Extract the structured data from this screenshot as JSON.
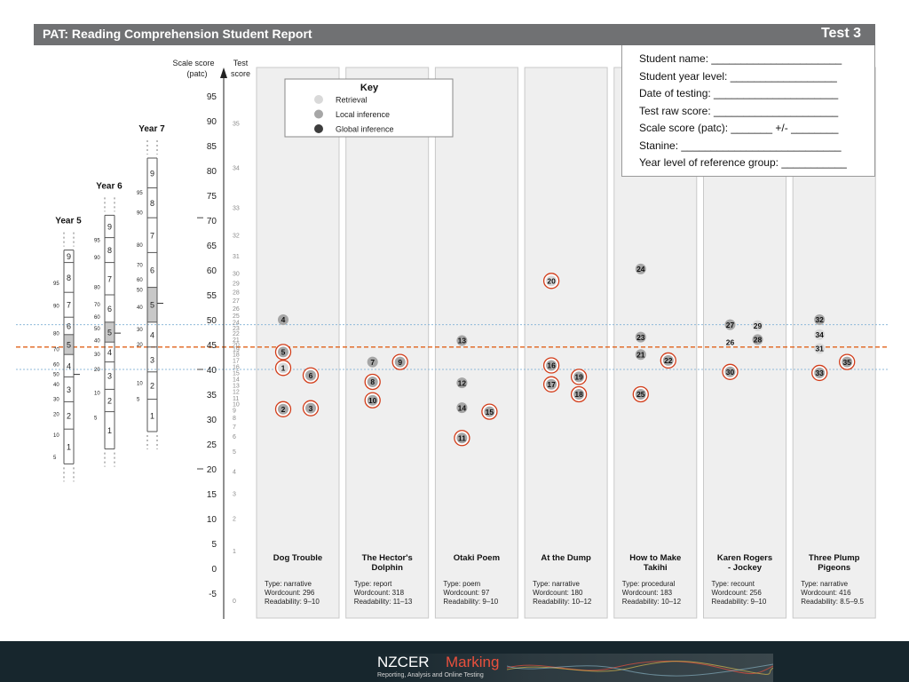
{
  "header": {
    "title": "PAT: Reading Comprehension Student Report",
    "test_label": "Test  3"
  },
  "student_info": [
    "Student name: ______________________",
    "Student year level: __________________",
    "Date of testing: _____________________",
    "Test raw score: _____________________",
    "Scale score (patc): _______  +/- ________",
    "Stanine: ___________________________",
    "Year level of reference group: ___________"
  ],
  "key": {
    "title": "Key",
    "items": [
      {
        "label": "Retrieval",
        "color": "#d9d9d9"
      },
      {
        "label": "Local inference",
        "color": "#a6a6a6"
      },
      {
        "label": "Global inference",
        "color": "#3d3d3d"
      }
    ]
  },
  "colors": {
    "header": "#707173",
    "panel": "#efefef",
    "circle_ring": "#d23c19",
    "ref_line": "#e0631b",
    "band_line": "#8fb9d9",
    "stanine_shade": "#c8c8c8"
  },
  "chart_data": {
    "type": "scatter",
    "axis": {
      "scale_label": [
        "Scale score",
        "(patc)"
      ],
      "test_label": [
        "Test",
        "score"
      ],
      "ylim": [
        -5,
        95
      ],
      "scale_ticks": [
        -5,
        0,
        5,
        10,
        15,
        20,
        25,
        30,
        35,
        40,
        45,
        50,
        55,
        60,
        65,
        70,
        75,
        80,
        85,
        90,
        95
      ]
    },
    "test_score_ticks": [
      [
        0,
        -6.5
      ],
      [
        1,
        3.5
      ],
      [
        2,
        10
      ],
      [
        3,
        15
      ],
      [
        4,
        19.5
      ],
      [
        5,
        23.5
      ],
      [
        6,
        26.5
      ],
      [
        7,
        28.5
      ],
      [
        8,
        30.3
      ],
      [
        9,
        31.8
      ],
      [
        10,
        33
      ],
      [
        11,
        34.2
      ],
      [
        12,
        35.5
      ],
      [
        13,
        36.8
      ],
      [
        14,
        38
      ],
      [
        15,
        39.3
      ],
      [
        16,
        40.5
      ],
      [
        17,
        41.8
      ],
      [
        18,
        43
      ],
      [
        19,
        44
      ],
      [
        20,
        45
      ],
      [
        21,
        46
      ],
      [
        22,
        47.2
      ],
      [
        23,
        48.3
      ],
      [
        24,
        49.5
      ],
      [
        25,
        50.8
      ],
      [
        26,
        52.2
      ],
      [
        27,
        53.8
      ],
      [
        28,
        55.5
      ],
      [
        29,
        57.3
      ],
      [
        30,
        59.3
      ],
      [
        31,
        62.8
      ],
      [
        32,
        67
      ],
      [
        33,
        72.5
      ],
      [
        34,
        80.5
      ],
      [
        35,
        89.5
      ]
    ],
    "reference_line": 44.5,
    "band": [
      40,
      49
    ],
    "passages": [
      {
        "title": "Dog Trouble",
        "type": "Type: narrative",
        "wordcount": "Wordcount: 296",
        "readability": "Readability: 9–10",
        "items": [
          {
            "n": "4",
            "y": 50,
            "pos": 0,
            "kind": "local",
            "ring": false
          },
          {
            "n": "5",
            "y": 43.5,
            "pos": 0,
            "kind": "local",
            "ring": true
          },
          {
            "n": "1",
            "y": 40.3,
            "pos": 0,
            "kind": "retrieval",
            "ring": true
          },
          {
            "n": "6",
            "y": 38.8,
            "pos": 1,
            "kind": "local",
            "ring": true
          },
          {
            "n": "2",
            "y": 32,
            "pos": 0,
            "kind": "local",
            "ring": true
          },
          {
            "n": "3",
            "y": 32.2,
            "pos": 1,
            "kind": "local",
            "ring": true
          }
        ]
      },
      {
        "title": "The Hector's Dolphin",
        "type": "Type: report",
        "wordcount": "Wordcount: 318",
        "readability": "Readability: 11–13",
        "items": [
          {
            "n": "7",
            "y": 41.5,
            "pos": 0,
            "kind": "local",
            "ring": false
          },
          {
            "n": "9",
            "y": 41.5,
            "pos": 1,
            "kind": "local",
            "ring": true
          },
          {
            "n": "8",
            "y": 37.5,
            "pos": 0,
            "kind": "local",
            "ring": true
          },
          {
            "n": "10",
            "y": 33.8,
            "pos": 0,
            "kind": "local",
            "ring": true
          }
        ]
      },
      {
        "title": "Otaki Poem",
        "type": "Type: poem",
        "wordcount": "Wordcount: 97",
        "readability": "Readability: 9–10",
        "items": [
          {
            "n": "13",
            "y": 45.8,
            "pos": 0,
            "kind": "local",
            "ring": false
          },
          {
            "n": "12",
            "y": 37.3,
            "pos": 0,
            "kind": "local",
            "ring": false
          },
          {
            "n": "14",
            "y": 32.3,
            "pos": 0,
            "kind": "local",
            "ring": false
          },
          {
            "n": "15",
            "y": 31.5,
            "pos": 1,
            "kind": "local",
            "ring": true
          },
          {
            "n": "11",
            "y": 26.2,
            "pos": 0,
            "kind": "local",
            "ring": true
          }
        ]
      },
      {
        "title": "At the Dump",
        "type": "Type: narrative",
        "wordcount": "Wordcount: 180",
        "readability": "Readability: 10–12",
        "items": [
          {
            "n": "20",
            "y": 57.8,
            "pos": 0,
            "kind": "retrieval",
            "ring": true
          },
          {
            "n": "16",
            "y": 40.8,
            "pos": 0,
            "kind": "local",
            "ring": true
          },
          {
            "n": "19",
            "y": 38.5,
            "pos": 1,
            "kind": "local",
            "ring": true
          },
          {
            "n": "17",
            "y": 37,
            "pos": 0,
            "kind": "local",
            "ring": true
          },
          {
            "n": "18",
            "y": 35,
            "pos": 1,
            "kind": "local",
            "ring": true
          }
        ]
      },
      {
        "title": "How to Make Takihi",
        "type": "Type: procedural",
        "wordcount": "Wordcount: 183",
        "readability": "Readability: 10–12",
        "items": [
          {
            "n": "24",
            "y": 60.2,
            "pos": 0,
            "kind": "local",
            "ring": false
          },
          {
            "n": "23",
            "y": 46.5,
            "pos": 0,
            "kind": "local",
            "ring": false
          },
          {
            "n": "21",
            "y": 43,
            "pos": 0,
            "kind": "local",
            "ring": false
          },
          {
            "n": "22",
            "y": 41.8,
            "pos": 1,
            "kind": "local",
            "ring": true
          },
          {
            "n": "25",
            "y": 35,
            "pos": 0,
            "kind": "local",
            "ring": true
          }
        ]
      },
      {
        "title": "Karen Rogers - Jockey",
        "type": "Type: recount",
        "wordcount": "Wordcount: 256",
        "readability": "Readability: 9–10",
        "items": [
          {
            "n": "27",
            "y": 49,
            "pos": 0,
            "kind": "local",
            "ring": false
          },
          {
            "n": "29",
            "y": 48.8,
            "pos": 1,
            "kind": "retrieval",
            "ring": false
          },
          {
            "n": "28",
            "y": 46,
            "pos": 1,
            "kind": "local",
            "ring": false
          },
          {
            "n": "26",
            "y": 45.5,
            "pos": 0,
            "kind": "none",
            "ring": false
          },
          {
            "n": "30",
            "y": 39.5,
            "pos": 0,
            "kind": "local",
            "ring": true
          }
        ]
      },
      {
        "title": "Three Plump Pigeons",
        "type": "Type: narrative",
        "wordcount": "Wordcount: 416",
        "readability": "Readability: 8.5–9.5",
        "items": [
          {
            "n": "32",
            "y": 50,
            "pos": 0,
            "kind": "local",
            "ring": false
          },
          {
            "n": "34",
            "y": 47,
            "pos": 0,
            "kind": "retrieval",
            "ring": false
          },
          {
            "n": "31",
            "y": 44.2,
            "pos": 0,
            "kind": "retrieval",
            "ring": false
          },
          {
            "n": "35",
            "y": 41.5,
            "pos": 1,
            "kind": "local",
            "ring": true
          },
          {
            "n": "33",
            "y": 39.3,
            "pos": 0,
            "kind": "local",
            "ring": true
          }
        ]
      }
    ],
    "year_scales": [
      {
        "label": "Year 5",
        "stanine_bounds": [
          21,
          28,
          33.5,
          38.5,
          43,
          47,
          50.5,
          55.5,
          61.5,
          64
        ],
        "percentiles": [
          [
            95,
            57.3
          ],
          [
            90,
            52.8
          ],
          [
            80,
            47.2
          ],
          [
            70,
            44
          ],
          [
            60,
            41
          ],
          [
            50,
            39
          ],
          [
            40,
            37
          ],
          [
            30,
            34
          ],
          [
            20,
            31
          ],
          [
            10,
            26.8
          ],
          [
            5,
            22.3
          ]
        ],
        "marker": 39
      },
      {
        "label": "Year 6",
        "stanine_bounds": [
          24,
          31.5,
          36,
          41.5,
          45.5,
          49.5,
          55,
          61.5,
          66.5,
          71
        ],
        "percentiles": [
          [
            95,
            66
          ],
          [
            90,
            62.5
          ],
          [
            80,
            56.5
          ],
          [
            70,
            53
          ],
          [
            60,
            50.5
          ],
          [
            50,
            48.2
          ],
          [
            40,
            45.8
          ],
          [
            30,
            43
          ],
          [
            20,
            40
          ],
          [
            10,
            35.3
          ],
          [
            5,
            30.3
          ]
        ],
        "marker": 47.3
      },
      {
        "label": "Year 7",
        "stanine_bounds": [
          27.5,
          34,
          39.5,
          44.5,
          49.5,
          56.5,
          63.5,
          70.5,
          76.5,
          82.5
        ],
        "percentiles": [
          [
            95,
            75.5
          ],
          [
            90,
            71.5
          ],
          [
            80,
            65
          ],
          [
            70,
            61
          ],
          [
            60,
            58
          ],
          [
            50,
            56
          ],
          [
            40,
            52.5
          ],
          [
            30,
            48
          ],
          [
            20,
            45
          ],
          [
            10,
            37.2
          ],
          [
            5,
            34
          ]
        ],
        "marker": 53.3
      }
    ]
  },
  "footer": {
    "brand_main": "NZCER ",
    "brand_accent": "Marking",
    "tagline": "Reporting, Analysis and Online Testing"
  }
}
